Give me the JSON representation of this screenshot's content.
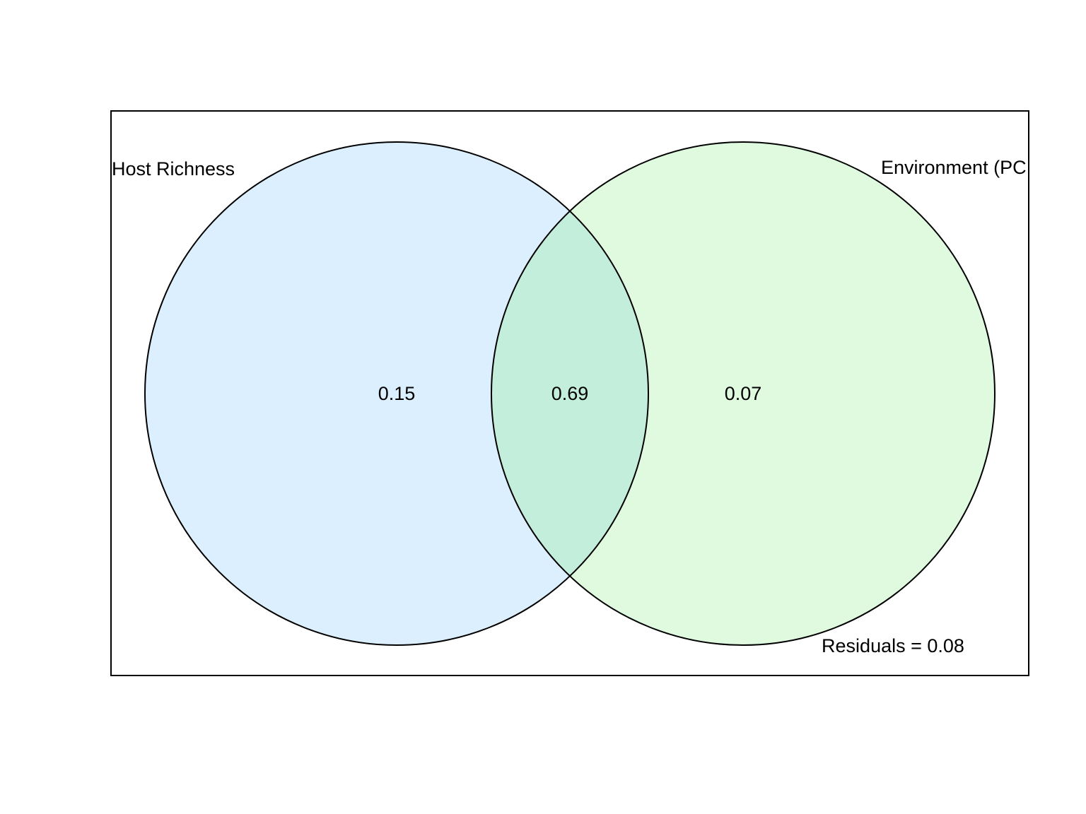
{
  "diagram": {
    "type": "venn",
    "sets": [
      {
        "name": "Host Richness",
        "fill": "#dcefff",
        "unique_fraction": "0.15"
      },
      {
        "name": "Environment (PC",
        "fill": "#dffadf",
        "unique_fraction": "0.07"
      }
    ],
    "intersection": {
      "fraction": "0.69",
      "fill": "#c4eedc"
    },
    "residuals_label": "Residuals = 0.08",
    "colors": {
      "outline": "#000000",
      "background": "#ffffff"
    }
  }
}
